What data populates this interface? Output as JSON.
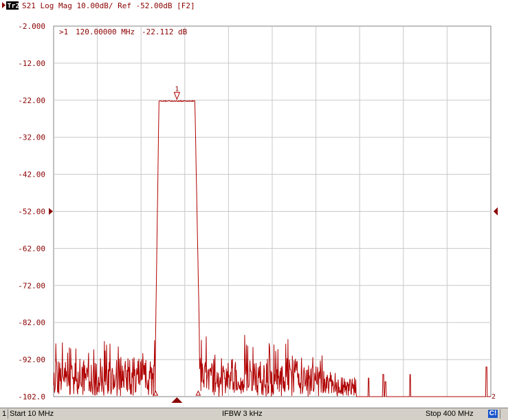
{
  "trace_header": {
    "trace_id": "Tr2",
    "text": "S21 Log Mag 10.00dB/ Ref -52.00dB [F2]"
  },
  "marker_readout": {
    "label": ">1",
    "frequency": "120.00000 MHz",
    "value": "-22.112 dB"
  },
  "marker_label": "1",
  "end_label": "2",
  "colors": {
    "trace": "#b00000",
    "text": "#8b0000",
    "grid": "#c8c8c8",
    "background": "#ffffff",
    "status_bar": "#d4d0c8",
    "correction_badge": "#1a55cc"
  },
  "status_bar": {
    "channel": "1",
    "start": "Start 10 MHz",
    "ifbw": "IFBW 3 kHz",
    "stop": "Stop 400 MHz",
    "correction": "C!"
  },
  "chart_data": {
    "type": "line",
    "title": "",
    "xlabel": "",
    "ylabel": "",
    "x_unit": "MHz",
    "xlim": [
      10,
      400
    ],
    "ylim": [
      -102,
      -2
    ],
    "scale_db_per_div": 10,
    "reference_level_db": -52,
    "x_divisions": 10,
    "grid": true,
    "y_tick_labels": [
      "-2.000",
      "-12.00",
      "-22.00",
      "-32.00",
      "-42.00",
      "-52.00",
      "-62.00",
      "-72.00",
      "-82.00",
      "-92.00",
      "-102.0"
    ],
    "y_tick_values": [
      -2,
      -12,
      -22,
      -32,
      -42,
      -52,
      -62,
      -72,
      -82,
      -92,
      -102
    ],
    "noise_floor_db": [
      -102,
      -90
    ],
    "passband_mhz": [
      104,
      136
    ],
    "passband_level_db": -22.1,
    "skirt_edges_mhz": [
      101,
      140
    ],
    "spurs": [
      {
        "x": 291,
        "y": -97
      },
      {
        "x": 304,
        "y": -96
      },
      {
        "x": 306,
        "y": -98
      },
      {
        "x": 328,
        "y": -96
      },
      {
        "x": 396,
        "y": -94
      }
    ],
    "markers": [
      {
        "id": "1",
        "x": 120,
        "y": -22.112,
        "active": true
      },
      {
        "id": "2",
        "x": 101,
        "y": -102,
        "active": false
      },
      {
        "id": "3",
        "x": 139,
        "y": -102,
        "active": false
      }
    ]
  }
}
